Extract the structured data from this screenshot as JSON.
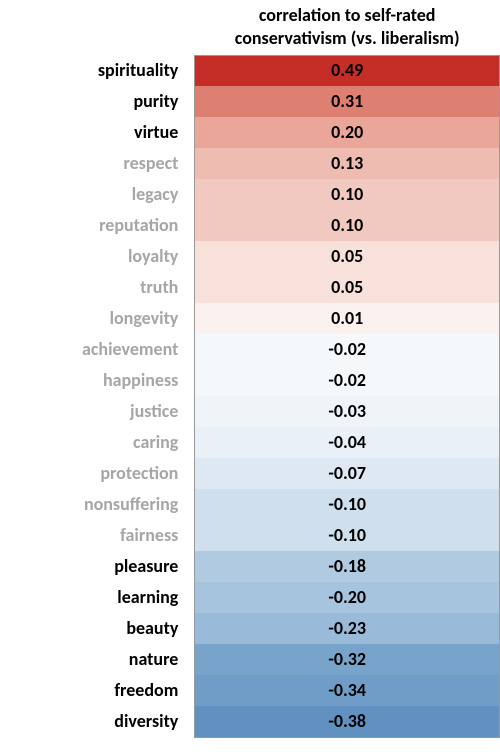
{
  "header": {
    "line1": "correlation to self-rated",
    "line2": "conservativism (vs. liberalism)"
  },
  "label_colors": {
    "strong": "#000000",
    "weak": "#a6a6a6"
  },
  "rows": [
    {
      "label": "spirituality",
      "value": "0.49",
      "bg": "#c52e27",
      "label_strong": true
    },
    {
      "label": "purity",
      "value": "0.31",
      "bg": "#dd7f71",
      "label_strong": true
    },
    {
      "label": "virtue",
      "value": "0.20",
      "bg": "#e9a699",
      "label_strong": true
    },
    {
      "label": "respect",
      "value": "0.13",
      "bg": "#efbcb1",
      "label_strong": false
    },
    {
      "label": "legacy",
      "value": "0.10",
      "bg": "#f2c9c0",
      "label_strong": false
    },
    {
      "label": "reputation",
      "value": "0.10",
      "bg": "#f2c9c0",
      "label_strong": false
    },
    {
      "label": "loyalty",
      "value": "0.05",
      "bg": "#f8e0db",
      "label_strong": false
    },
    {
      "label": "truth",
      "value": "0.05",
      "bg": "#f8e0db",
      "label_strong": false
    },
    {
      "label": "longevity",
      "value": "0.01",
      "bg": "#fbf1ef",
      "label_strong": false
    },
    {
      "label": "achievement",
      "value": "-0.02",
      "bg": "#f5f8fb",
      "label_strong": false
    },
    {
      "label": "happiness",
      "value": "-0.02",
      "bg": "#f5f8fb",
      "label_strong": false
    },
    {
      "label": "justice",
      "value": "-0.03",
      "bg": "#eff4f9",
      "label_strong": false
    },
    {
      "label": "caring",
      "value": "-0.04",
      "bg": "#e9f0f7",
      "label_strong": false
    },
    {
      "label": "protection",
      "value": "-0.07",
      "bg": "#dde8f2",
      "label_strong": false
    },
    {
      "label": "nonsuffering",
      "value": "-0.10",
      "bg": "#cfdfed",
      "label_strong": false
    },
    {
      "label": "fairness",
      "value": "-0.10",
      "bg": "#cfdfed",
      "label_strong": false
    },
    {
      "label": "pleasure",
      "value": "-0.18",
      "bg": "#b0cae2",
      "label_strong": true
    },
    {
      "label": "learning",
      "value": "-0.20",
      "bg": "#a7c4de",
      "label_strong": true
    },
    {
      "label": "beauty",
      "value": "-0.23",
      "bg": "#99bad8",
      "label_strong": true
    },
    {
      "label": "nature",
      "value": "-0.32",
      "bg": "#78a3cb",
      "label_strong": true
    },
    {
      "label": "freedom",
      "value": "-0.34",
      "bg": "#6f9dc7",
      "label_strong": true
    },
    {
      "label": "diversity",
      "value": "-0.38",
      "bg": "#6091c0",
      "label_strong": true
    }
  ]
}
